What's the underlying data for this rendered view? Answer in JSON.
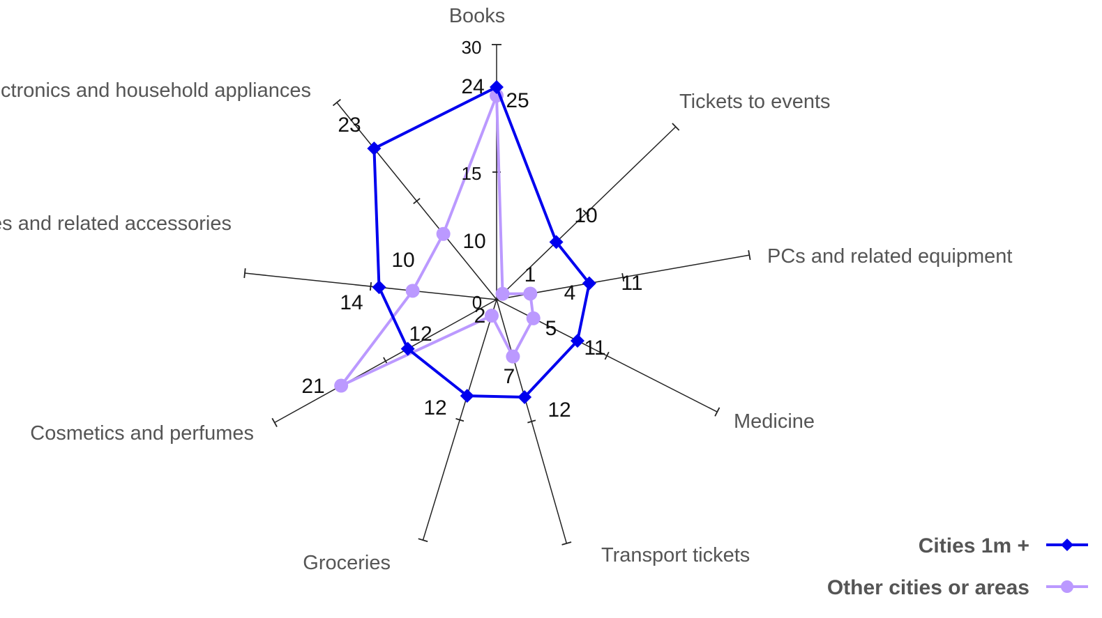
{
  "chart_data": {
    "type": "radar",
    "title": "",
    "categories": [
      "Books",
      "Tickets to events",
      "PCs and related equipment",
      "Medicine",
      "Transport tickets",
      "Groceries",
      "Cosmetics and perfumes",
      "Phones and related accessories",
      "Electronics and household appliances"
    ],
    "axis_range": [
      0,
      30
    ],
    "axis_ticks": [
      0,
      15,
      30
    ],
    "series": [
      {
        "name": "Cities 1m +",
        "color": "#0000ee",
        "marker": "diamond",
        "values": [
          25,
          10,
          11,
          11,
          12,
          12,
          12,
          14,
          23
        ]
      },
      {
        "name": "Other cities or areas",
        "color": "#bb99ff",
        "marker": "circle",
        "values": [
          24,
          1,
          4,
          5,
          7,
          2,
          21,
          10,
          10
        ]
      }
    ],
    "legend_position": "bottom-right",
    "grid": false
  }
}
